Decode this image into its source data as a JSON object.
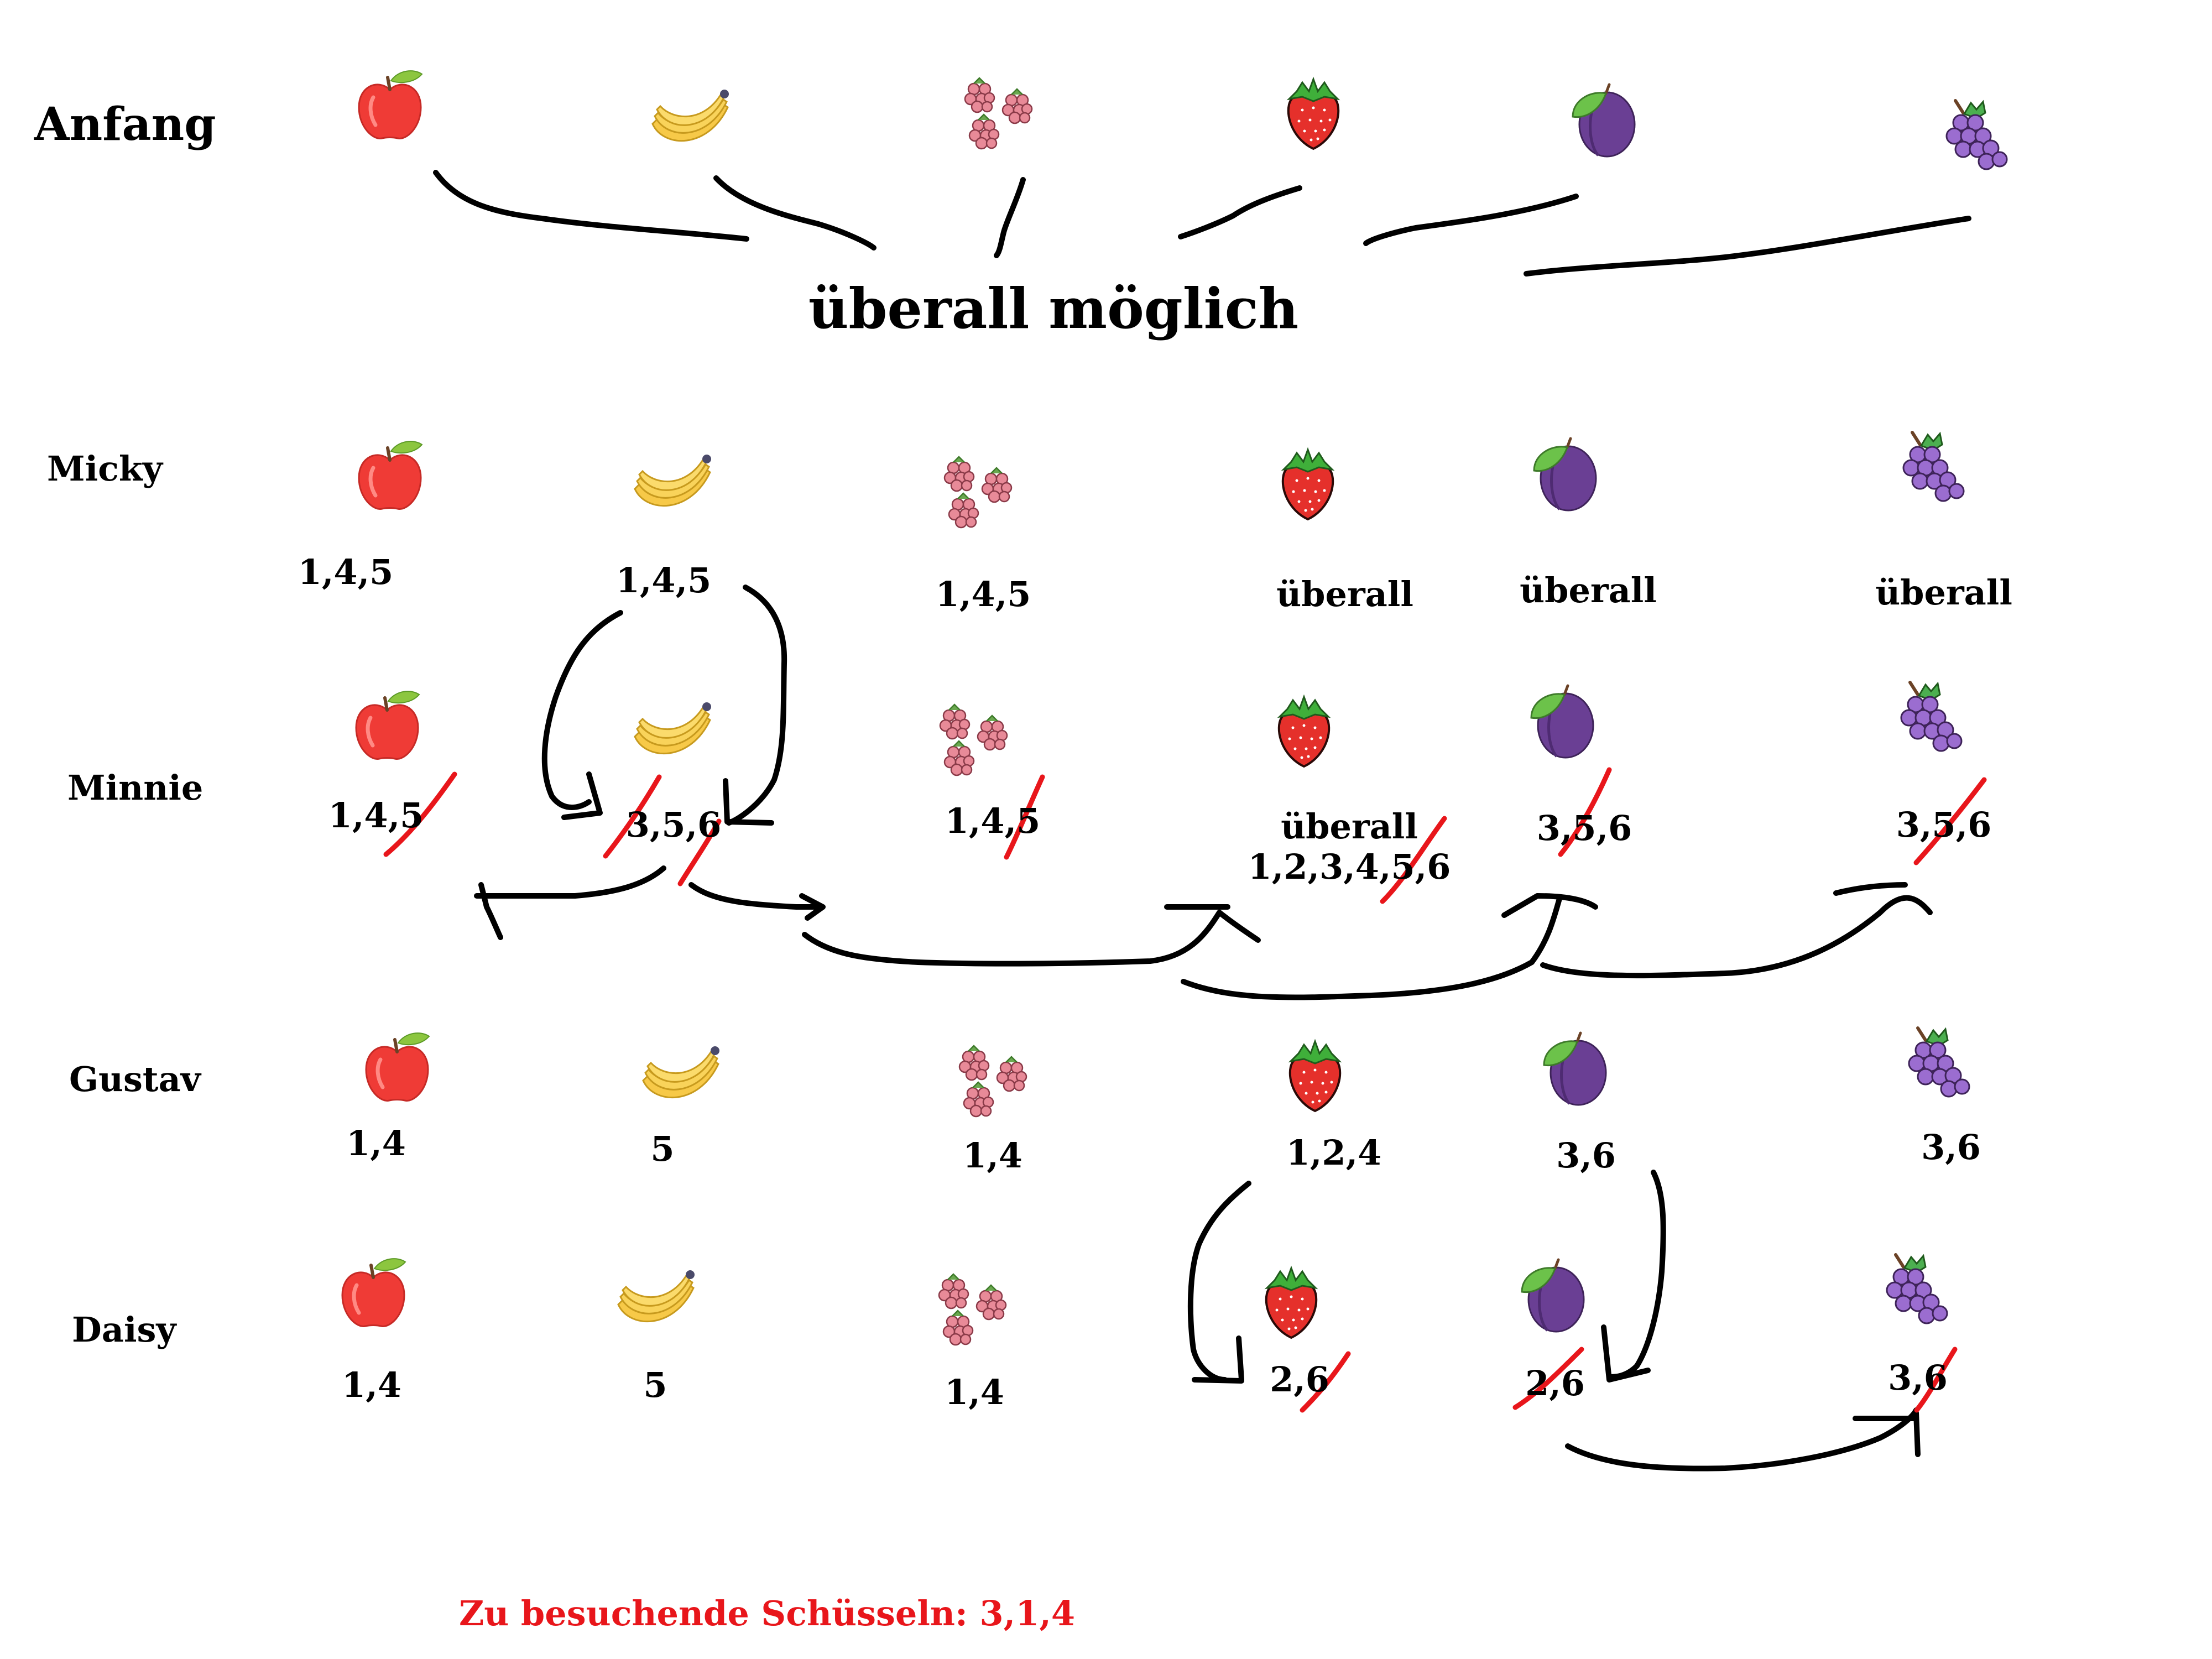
{
  "heading": "Anfang",
  "title": "überall möglich",
  "fruit_icons": [
    "apple-icon",
    "banana-icon",
    "raspberry-icon",
    "strawberry-icon",
    "plum-icon",
    "grape-icon"
  ],
  "rows": [
    {
      "label": "Micky",
      "cells": [
        "1,4,5",
        "1,4,5",
        "1,4,5",
        "überall",
        "überall",
        "überall"
      ]
    },
    {
      "label": "Minnie",
      "cells": [
        "1,4,5",
        "3,5,6",
        "1,4,5",
        "überall",
        "3,5,6",
        "3,5,6"
      ],
      "extra": "1,2,3,4,5,6"
    },
    {
      "label": "Gustav",
      "cells": [
        "1,4",
        "5",
        "1,4",
        "1,2,4",
        "3,6",
        "3,6"
      ]
    },
    {
      "label": "Daisy",
      "cells": [
        "1,4",
        "5",
        "1,4",
        "2,6",
        "2,6",
        "3,6"
      ]
    }
  ],
  "footer": "Zu besuchende Schüsseln: 3,1,4",
  "colors": {
    "strike": "#e8161b",
    "footer": "#e8161b",
    "ink": "#000000"
  }
}
